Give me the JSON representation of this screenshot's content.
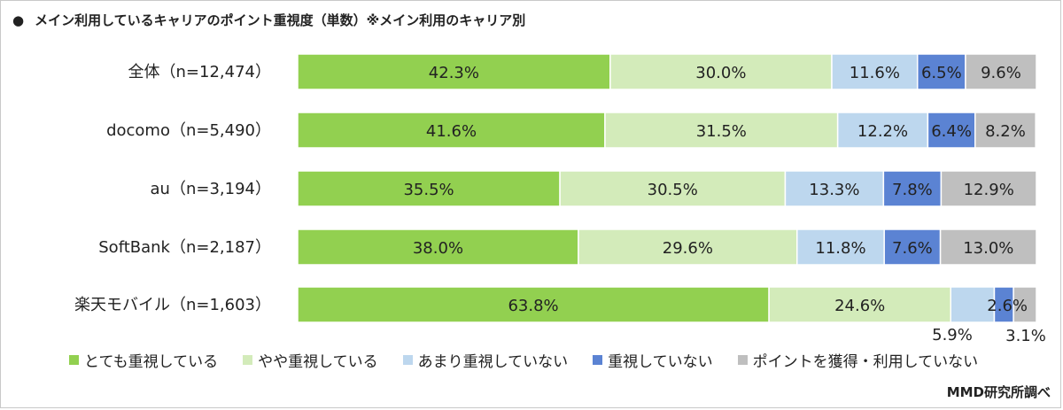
{
  "title": "メイン利用しているキャリアのポイント重視度（単数）※メイン利用のキャリア別",
  "title_bullet": "●",
  "source": "MMD研究所調べ",
  "chart_data": {
    "type": "bar",
    "orientation": "horizontal",
    "stacked": true,
    "stack_normalized": true,
    "xlim": [
      0,
      100
    ],
    "value_unit": "%",
    "categories": [
      "全体（n=12,474）",
      "docomo（n=5,490）",
      "au（n=3,194）",
      "SoftBank（n=2,187）",
      "楽天モバイル（n=1,603）"
    ],
    "series": [
      {
        "name": "とても重視している",
        "color": "#92d050",
        "values": [
          42.3,
          41.6,
          35.5,
          38.0,
          63.8
        ],
        "labels": [
          "42.3%",
          "41.6%",
          "35.5%",
          "38.0%",
          "63.8%"
        ]
      },
      {
        "name": "やや重視している",
        "color": "#d3ebba",
        "values": [
          30.0,
          31.5,
          30.5,
          29.6,
          24.6
        ],
        "labels": [
          "30.0%",
          "31.5%",
          "30.5%",
          "29.6%",
          "24.6%"
        ]
      },
      {
        "name": "あまり重視していない",
        "color": "#bdd7ee",
        "values": [
          11.6,
          12.2,
          13.3,
          11.8,
          5.9
        ],
        "labels": [
          "11.6%",
          "12.2%",
          "13.3%",
          "11.8%",
          "5.9%"
        ]
      },
      {
        "name": "重視していない",
        "color": "#5b83d3",
        "values": [
          6.5,
          6.4,
          7.8,
          7.6,
          2.6
        ],
        "labels": [
          "6.5%",
          "6.4%",
          "7.8%",
          "7.6%",
          "2.6%"
        ]
      },
      {
        "name": "ポイントを獲得・利用していない",
        "color": "#bfbfbf",
        "values": [
          9.6,
          8.2,
          12.9,
          13.0,
          3.1
        ],
        "labels": [
          "9.6%",
          "8.2%",
          "12.9%",
          "13.0%",
          "3.1%"
        ]
      }
    ],
    "legend_position": "bottom",
    "grid": false
  }
}
